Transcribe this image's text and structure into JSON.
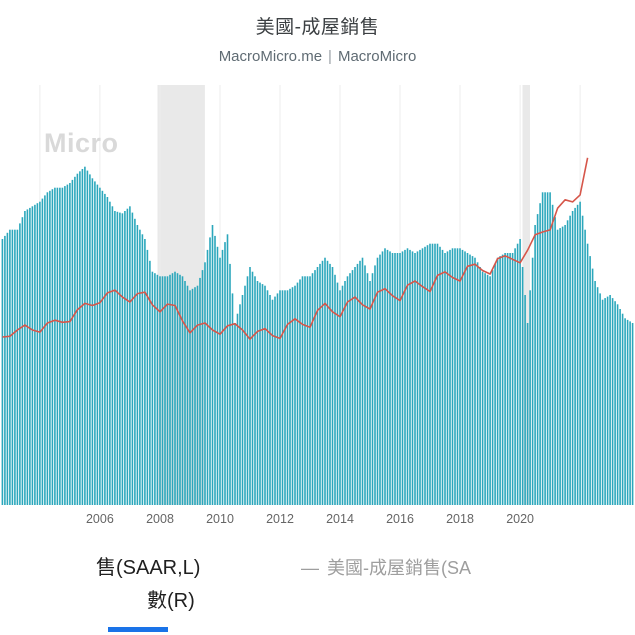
{
  "header": {
    "title": "美國-成屋銷售",
    "source_left": "MacroMicro.me",
    "separator": "|",
    "source_right": "MacroMicro"
  },
  "chart": {
    "watermark": "Micro"
  },
  "legend": {
    "item1": "售(SAAR,L)",
    "item2": "數(R)",
    "right_dash": "—",
    "right_label": "美國-成屋銷售(SA"
  },
  "chart_data": {
    "type": "bar",
    "title": "美國-成屋銷售",
    "x_range": [
      2002.67,
      2023.83
    ],
    "x_ticks": [
      2006,
      2008,
      2010,
      2012,
      2014,
      2016,
      2018,
      2020
    ],
    "gridline_years": [
      2004,
      2006,
      2008,
      2010,
      2012,
      2014,
      2016,
      2018,
      2020,
      2022
    ],
    "left_ylim": [
      0,
      9
    ],
    "right_ylim": [
      -80,
      520
    ],
    "recessions": [
      [
        2007.92,
        2009.5
      ],
      [
        2020.08,
        2020.33
      ]
    ],
    "colors": {
      "bar": "#2ba7bc",
      "line": "#d6564a",
      "recession": "#e9e9e9",
      "grid": "#ededed",
      "tick": "#666666"
    },
    "series": [
      {
        "name": "售(SAAR,L)",
        "type": "bar",
        "axis": "L",
        "unit": "million units SAAR",
        "x_start": 2002.75,
        "x_step": 0.25,
        "values": [
          5.7,
          5.9,
          5.9,
          6.3,
          6.4,
          6.5,
          6.7,
          6.8,
          6.8,
          6.9,
          7.1,
          7.25,
          7.0,
          6.8,
          6.6,
          6.3,
          6.25,
          6.4,
          6.0,
          5.7,
          5.0,
          4.9,
          4.9,
          5.0,
          4.9,
          4.6,
          4.7,
          5.2,
          6.0,
          5.3,
          5.8,
          3.9,
          4.5,
          5.1,
          4.8,
          4.7,
          4.4,
          4.6,
          4.6,
          4.7,
          4.9,
          4.9,
          5.1,
          5.3,
          5.1,
          4.6,
          4.9,
          5.1,
          5.3,
          4.8,
          5.3,
          5.5,
          5.4,
          5.4,
          5.5,
          5.4,
          5.5,
          5.6,
          5.6,
          5.4,
          5.5,
          5.5,
          5.4,
          5.3,
          5.0,
          4.9,
          5.3,
          5.4,
          5.4,
          5.7,
          3.9,
          6.0,
          6.7,
          6.7,
          5.9,
          6.0,
          6.3,
          6.5,
          5.6,
          4.8,
          4.4,
          4.5,
          4.3,
          4.0,
          3.9
        ]
      },
      {
        "name": "數(R)",
        "type": "line",
        "axis": "R",
        "unit": "thousand USD",
        "x_start": 2002.75,
        "x_step": 0.25,
        "values": [
          160,
          161,
          170,
          177,
          170,
          167,
          180,
          184,
          181,
          182,
          199,
          208,
          205,
          209,
          223,
          227,
          217,
          210,
          222,
          224,
          206,
          196,
          207,
          205,
          183,
          166,
          177,
          180,
          170,
          164,
          176,
          179,
          170,
          157,
          168,
          172,
          162,
          158,
          178,
          186,
          178,
          174,
          198,
          208,
          196,
          189,
          210,
          217,
          206,
          200,
          224,
          229,
          219,
          212,
          234,
          240,
          232,
          225,
          248,
          253,
          245,
          240,
          261,
          264,
          255,
          250,
          272,
          276,
          271,
          266,
          284,
          306,
          310,
          313,
          344,
          356,
          353,
          363,
          416
        ]
      }
    ]
  }
}
